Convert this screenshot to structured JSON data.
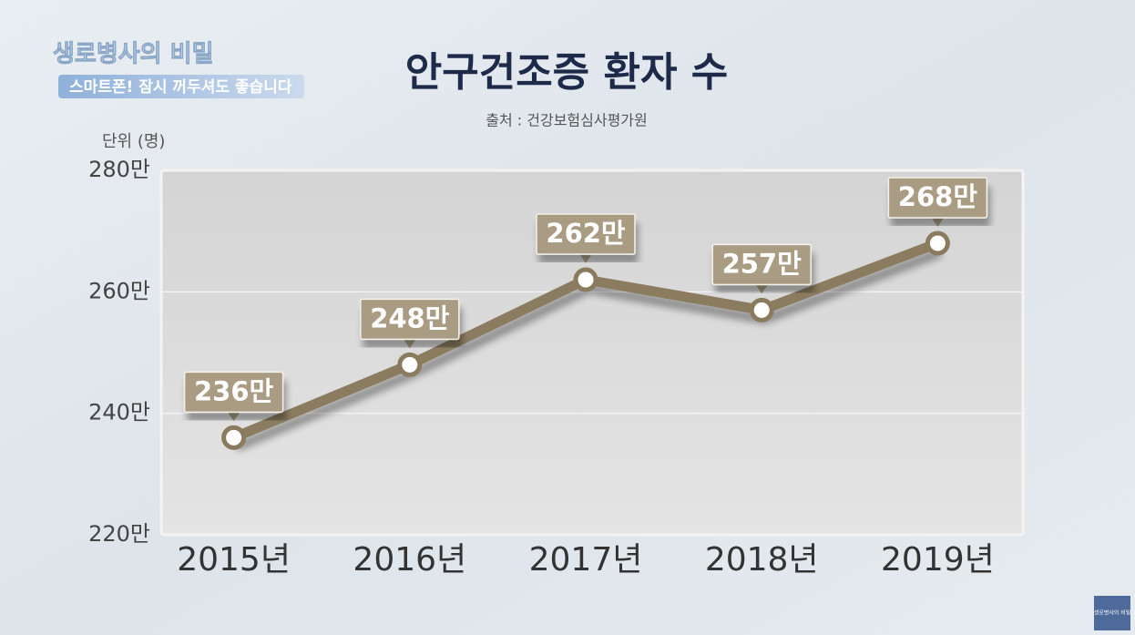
{
  "program": {
    "logo": "생로병사의 비밀",
    "banner": "스마트폰! 잠시 꺼두셔도 좋습니다",
    "corner_logo": "생로병사의 비밀"
  },
  "chart_data": {
    "type": "line",
    "title": "안구건조증 환자 수",
    "subtitle": "출처 : 건강보험심사평가원",
    "y_label": "단위 (명)",
    "categories": [
      "2015년",
      "2016년",
      "2017년",
      "2018년",
      "2019년"
    ],
    "values": [
      2360000,
      2480000,
      2620000,
      2570000,
      2680000
    ],
    "value_labels": [
      "236만",
      "248만",
      "262만",
      "257만",
      "268만"
    ],
    "color": "#8b7b5e",
    "label_color": "#a99c83",
    "ylim": [
      2200000,
      2800000
    ],
    "yticks": [
      {
        "value": 2200000,
        "label": "220만"
      },
      {
        "value": 2400000,
        "label": "240만"
      },
      {
        "value": 2600000,
        "label": "260만"
      },
      {
        "value": 2800000,
        "label": "280만"
      }
    ],
    "grid": true
  }
}
